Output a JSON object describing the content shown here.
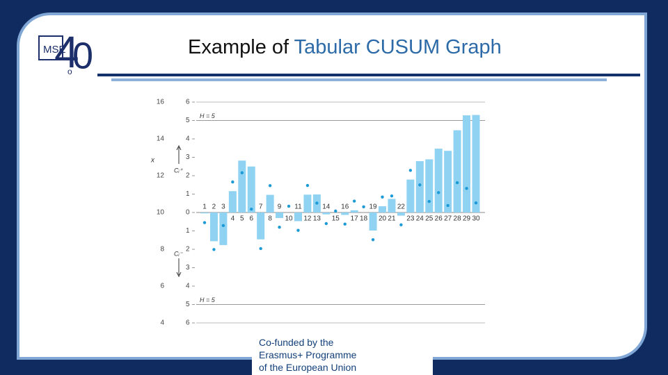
{
  "slide": {
    "title_prefix": "Example of",
    "title_highlight": "Tabular CUSUM Graph",
    "logo_mark": "MSE",
    "logo_four": "4",
    "logo_dot": "o",
    "logo_zero": "0",
    "footer": [
      "Co-funded by the",
      "Erasmus+ Programme",
      "of the European Union"
    ]
  },
  "chart_data": {
    "type": "cusum",
    "x": [
      1,
      2,
      3,
      4,
      5,
      6,
      7,
      8,
      9,
      10,
      11,
      12,
      13,
      14,
      15,
      16,
      17,
      18,
      19,
      20,
      21,
      22,
      23,
      24,
      25,
      26,
      27,
      28,
      29,
      30
    ],
    "y_label": "x",
    "y2_upper_label": "Cᵢ⁺",
    "y2_lower_label": "Cᵢ⁻",
    "ylim": [
      4,
      16
    ],
    "yticks": [
      4,
      6,
      8,
      10,
      12,
      14,
      16
    ],
    "y2lim": [
      -6,
      6
    ],
    "y2ticks": [
      {
        "value": -6,
        "label": "6"
      },
      {
        "value": -5,
        "label": "5"
      },
      {
        "value": -4,
        "label": "4"
      },
      {
        "value": -3,
        "label": "3"
      },
      {
        "value": -2,
        "label": "2"
      },
      {
        "value": -1,
        "label": "1"
      },
      0,
      1,
      2,
      3,
      4,
      5,
      6
    ],
    "h_lines": [
      {
        "value": 5,
        "label": "H = 5"
      },
      {
        "value": -5,
        "label": "H = 5"
      }
    ],
    "series": [
      {
        "name": "C+",
        "kind": "bar",
        "axis": "y2",
        "color": "#8fd2f2",
        "values": [
          0,
          0,
          0,
          1.16,
          2.82,
          2.5,
          0,
          0.96,
          0,
          0,
          0,
          0.97,
          0.98,
          0,
          0,
          0,
          0.12,
          0,
          0,
          0.34,
          0.74,
          0,
          1.79,
          2.79,
          2.89,
          3.47,
          3.35,
          4.47,
          5.28,
          5.3
        ]
      },
      {
        "name": "C-",
        "kind": "bar",
        "axis": "y2",
        "color": "#8fd2f2",
        "values": [
          -0.05,
          -1.56,
          -1.77,
          0,
          0,
          0,
          -1.46,
          0,
          -0.3,
          0,
          -0.47,
          0,
          0,
          -0.1,
          0,
          -0.13,
          0,
          0,
          -0.98,
          0,
          0,
          -0.17,
          0,
          0,
          0,
          0,
          0,
          0,
          0,
          0
        ]
      },
      {
        "name": "x",
        "kind": "dot",
        "axis": "y",
        "color": "#1c9ad6",
        "values": [
          9.45,
          7.99,
          9.29,
          11.66,
          12.16,
          10.18,
          8.04,
          11.46,
          9.2,
          10.34,
          9.03,
          11.47,
          10.51,
          9.4,
          10.08,
          9.37,
          10.62,
          10.31,
          8.52,
          10.84,
          10.9,
          9.33,
          12.29,
          11.5,
          10.6,
          11.08,
          10.38,
          11.62,
          11.31,
          10.52
        ]
      }
    ]
  }
}
